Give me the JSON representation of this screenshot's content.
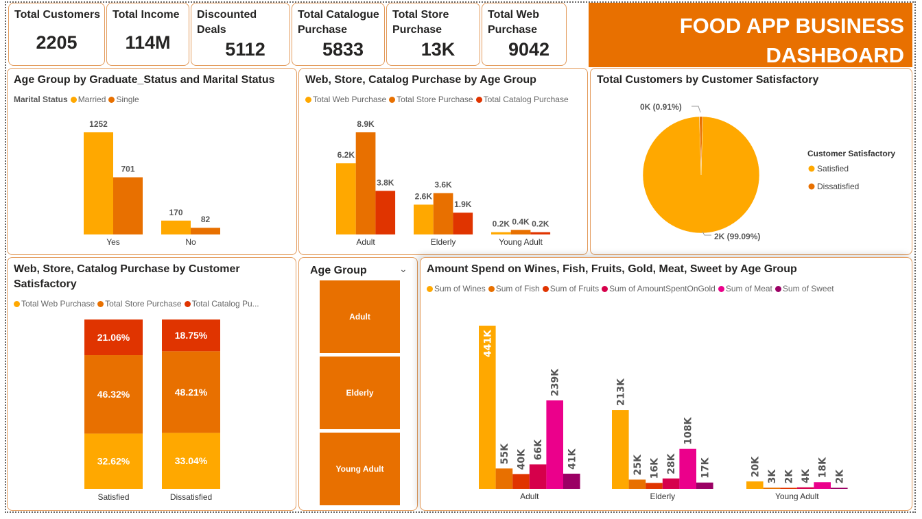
{
  "kpis": [
    {
      "label": "Total Customers",
      "value": "2205"
    },
    {
      "label": "Total Income",
      "value": "114M"
    },
    {
      "label": "Discounted Deals",
      "value": "5112"
    },
    {
      "label": "Total Catalogue Purchase",
      "value": "5833"
    },
    {
      "label": "Total Store Purchase",
      "value": "13K"
    },
    {
      "label": "Total Web Purchase",
      "value": "9042"
    }
  ],
  "banner": {
    "line1": "FOOD APP BUSINESS",
    "line2": "DASHBOARD"
  },
  "colors": {
    "yellow": "#FFA800",
    "orange": "#E87000",
    "red": "#E03400",
    "crimson": "#D6004B",
    "pink": "#EB008B",
    "purple": "#9B0064",
    "accent": "#E87000"
  },
  "slicer": {
    "title": "Age Group",
    "options": [
      "Adult",
      "Elderly",
      "Young Adult"
    ],
    "icon": "chevron-down-icon"
  },
  "chart_data": [
    {
      "type": "bar",
      "title": "Age Group by Graduate_Status and Marital Status",
      "legend_title": "Marital Status",
      "categories": [
        "Yes",
        "No"
      ],
      "series": [
        {
          "name": "Married",
          "values": [
            1252,
            170
          ],
          "labels": [
            "1252",
            "170"
          ],
          "color": "#FFA800"
        },
        {
          "name": "Single",
          "values": [
            701,
            82
          ],
          "labels": [
            "701",
            "82"
          ],
          "color": "#E87000"
        }
      ]
    },
    {
      "type": "bar",
      "title": "Web, Store, Catalog Purchase by Age Group",
      "categories": [
        "Adult",
        "Elderly",
        "Young Adult"
      ],
      "series": [
        {
          "name": "Total Web Purchase",
          "values": [
            6200,
            2600,
            200
          ],
          "labels": [
            "6.2K",
            "2.6K",
            "0.2K"
          ],
          "color": "#FFA800"
        },
        {
          "name": "Total Store Purchase",
          "values": [
            8900,
            3600,
            400
          ],
          "labels": [
            "8.9K",
            "3.6K",
            "0.4K"
          ],
          "color": "#E87000"
        },
        {
          "name": "Total Catalog Purchase",
          "values": [
            3800,
            1900,
            200
          ],
          "labels": [
            "3.8K",
            "1.9K",
            "0.2K"
          ],
          "color": "#E03400"
        }
      ]
    },
    {
      "type": "pie",
      "title": "Total Customers by Customer Satisfactory",
      "legend_title": "Customer Satisfactory",
      "legend_position": "right",
      "slices": [
        {
          "name": "Satisfied",
          "percent": 99.09,
          "label": "2K (99.09%)",
          "color": "#FFA800"
        },
        {
          "name": "Dissatisfied",
          "percent": 0.91,
          "label": "0K (0.91%)",
          "color": "#E87000"
        }
      ]
    },
    {
      "type": "bar",
      "stacked": "100%",
      "title": "Web, Store, Catalog Purchase by Customer Satisfactory",
      "categories": [
        "Satisfied",
        "Dissatisfied"
      ],
      "legend_labels": [
        "Total Web Purchase",
        "Total Store Purchase",
        "Total Catalog Pu..."
      ],
      "series": [
        {
          "name": "Total Web Purchase",
          "values": [
            32.62,
            33.04
          ],
          "labels": [
            "32.62%",
            "33.04%"
          ],
          "color": "#FFA800"
        },
        {
          "name": "Total Store Purchase",
          "values": [
            46.32,
            48.21
          ],
          "labels": [
            "46.32%",
            "48.21%"
          ],
          "color": "#E87000"
        },
        {
          "name": "Total Catalog Purchase",
          "values": [
            21.06,
            18.75
          ],
          "labels": [
            "21.06%",
            "18.75%"
          ],
          "color": "#E03400"
        }
      ]
    },
    {
      "type": "bar",
      "title": "Amount Spend on Wines, Fish, Fruits, Gold, Meat, Sweet by Age Group",
      "categories": [
        "Adult",
        "Elderly",
        "Young Adult"
      ],
      "series": [
        {
          "name": "Sum of Wines",
          "values": [
            441000,
            213000,
            20000
          ],
          "labels": [
            "441K",
            "213K",
            "20K"
          ],
          "color": "#FFA800"
        },
        {
          "name": "Sum of Fish",
          "values": [
            55000,
            25000,
            3000
          ],
          "labels": [
            "55K",
            "25K",
            "3K"
          ],
          "color": "#E87000"
        },
        {
          "name": "Sum of Fruits",
          "values": [
            40000,
            16000,
            2000
          ],
          "labels": [
            "40K",
            "16K",
            "2K"
          ],
          "color": "#E03400"
        },
        {
          "name": "Sum of AmountSpentOnGold",
          "values": [
            66000,
            28000,
            4000
          ],
          "labels": [
            "66K",
            "28K",
            "4K"
          ],
          "color": "#D6004B"
        },
        {
          "name": "Sum of Meat",
          "values": [
            239000,
            108000,
            18000
          ],
          "labels": [
            "239K",
            "108K",
            "18K"
          ],
          "color": "#EB008B"
        },
        {
          "name": "Sum of Sweet",
          "values": [
            41000,
            17000,
            2000
          ],
          "labels": [
            "41K",
            "17K",
            "2K"
          ],
          "color": "#9B0064"
        }
      ]
    }
  ]
}
